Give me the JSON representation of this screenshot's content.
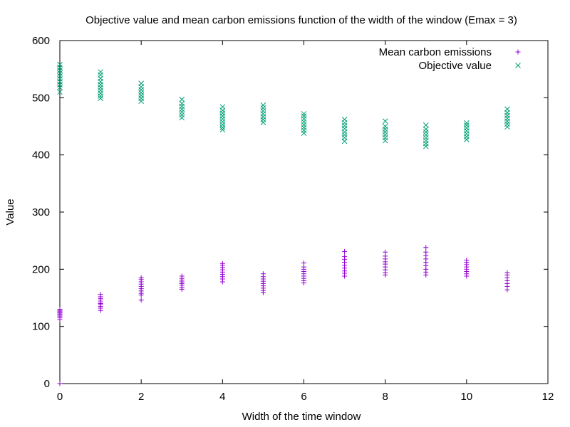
{
  "chart_data": {
    "type": "scatter",
    "title": "Objective value and mean carbon emissions function of the width of the window (Emax = 3)",
    "xlabel": "Width of the time window",
    "ylabel": "Value",
    "xlim": [
      0,
      12
    ],
    "ylim": [
      0,
      600
    ],
    "xticks": [
      0,
      2,
      4,
      6,
      8,
      10,
      12
    ],
    "yticks": [
      0,
      100,
      200,
      300,
      400,
      500,
      600
    ],
    "grid": false,
    "legend_position": "top-right",
    "series": [
      {
        "name": "Mean carbon emissions",
        "marker": "plus",
        "color": "#9400d3",
        "groups": [
          {
            "x": 0,
            "values": [
              0,
              112,
              115,
              118,
              120,
              122,
              124,
              126,
              128,
              130
            ]
          },
          {
            "x": 1,
            "values": [
              128,
              132,
              135,
              138,
              140,
              143,
              146,
              149,
              152,
              156
            ]
          },
          {
            "x": 2,
            "values": [
              146,
              155,
              158,
              162,
              166,
              170,
              174,
              178,
              182,
              185
            ]
          },
          {
            "x": 3,
            "values": [
              165,
              168,
              172,
              175,
              178,
              181,
              184,
              188
            ]
          },
          {
            "x": 4,
            "values": [
              178,
              183,
              187,
              191,
              195,
              199,
              203,
              207,
              210
            ]
          },
          {
            "x": 5,
            "values": [
              159,
              163,
              167,
              171,
              175,
              179,
              183,
              187,
              192
            ]
          },
          {
            "x": 6,
            "values": [
              176,
              180,
              184,
              188,
              192,
              196,
              200,
              204,
              211
            ]
          },
          {
            "x": 7,
            "values": [
              188,
              193,
              197,
              202,
              207,
              212,
              217,
              222,
              231
            ]
          },
          {
            "x": 8,
            "values": [
              190,
              194,
              199,
              204,
              209,
              213,
              218,
              223,
              230
            ]
          },
          {
            "x": 9,
            "values": [
              190,
              195,
              200,
              206,
              212,
              218,
              224,
              230,
              238
            ]
          },
          {
            "x": 10,
            "values": [
              188,
              192,
              196,
              200,
              204,
              208,
              212,
              216
            ]
          },
          {
            "x": 11,
            "values": [
              164,
              170,
              175,
              180,
              185,
              190,
              194
            ]
          }
        ]
      },
      {
        "name": "Objective value",
        "marker": "cross",
        "color": "#009e73",
        "groups": [
          {
            "x": 0,
            "values": [
              510,
              518,
              523,
              528,
              533,
              538,
              543,
              548,
              553,
              558
            ]
          },
          {
            "x": 1,
            "values": [
              499,
              503,
              508,
              513,
              518,
              523,
              528,
              534,
              540,
              545
            ]
          },
          {
            "x": 2,
            "values": [
              494,
              499,
              504,
              509,
              514,
              519,
              525
            ]
          },
          {
            "x": 3,
            "values": [
              465,
              470,
              475,
              480,
              485,
              490,
              497
            ]
          },
          {
            "x": 4,
            "values": [
              444,
              448,
              453,
              458,
              463,
              468,
              473,
              478,
              484
            ]
          },
          {
            "x": 5,
            "values": [
              457,
              462,
              467,
              472,
              477,
              482,
              487
            ]
          },
          {
            "x": 6,
            "values": [
              438,
              443,
              448,
              453,
              458,
              463,
              468,
              472
            ]
          },
          {
            "x": 7,
            "values": [
              424,
              430,
              435,
              440,
              446,
              451,
              456,
              462
            ]
          },
          {
            "x": 8,
            "values": [
              425,
              430,
              435,
              440,
              445,
              450,
              459
            ]
          },
          {
            "x": 9,
            "values": [
              415,
              420,
              425,
              430,
              435,
              440,
              445,
              452
            ]
          },
          {
            "x": 10,
            "values": [
              427,
              432,
              437,
              442,
              447,
              452,
              456
            ]
          },
          {
            "x": 11,
            "values": [
              449,
              454,
              459,
              464,
              469,
              474,
              480
            ]
          }
        ]
      }
    ]
  }
}
